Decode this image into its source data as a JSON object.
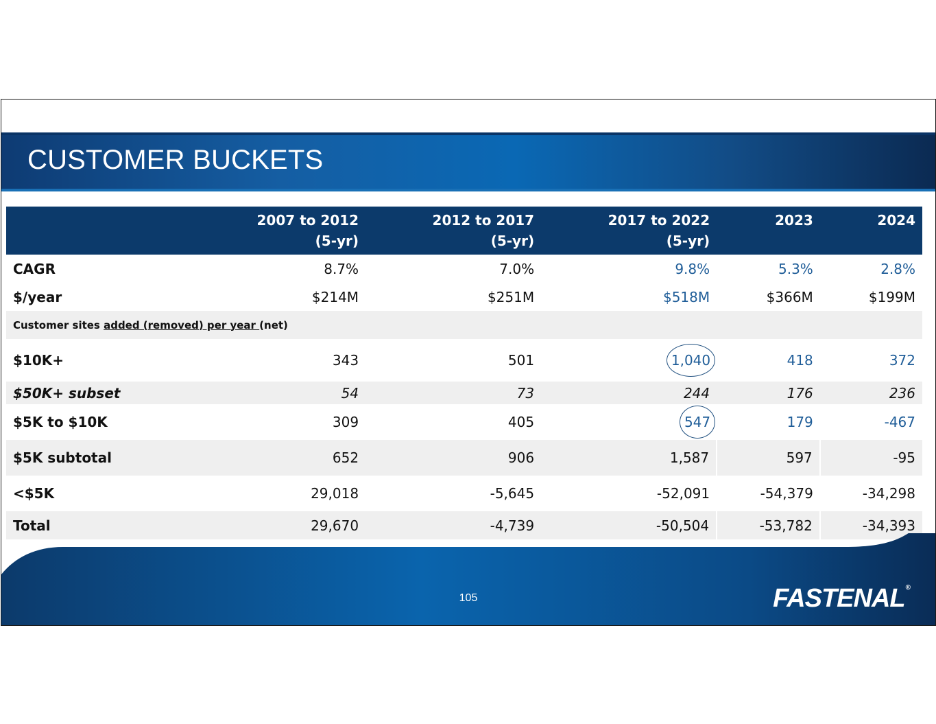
{
  "slide": {
    "title": "CUSTOMER BUCKETS",
    "page_number": "105",
    "brand": "FASTENAL",
    "brand_mark": "®"
  },
  "table": {
    "headers": [
      {
        "line1": "2007 to 2012",
        "line2": "(5-yr)"
      },
      {
        "line1": "2012 to 2017",
        "line2": "(5-yr)"
      },
      {
        "line1": "2017 to 2022",
        "line2": "(5-yr)"
      },
      {
        "line1": "2023",
        "line2": ""
      },
      {
        "line1": "2024",
        "line2": ""
      }
    ],
    "rows": {
      "cagr": {
        "label": "CAGR",
        "values": [
          "8.7%",
          "7.0%",
          "9.8%",
          "5.3%",
          "2.8%"
        ]
      },
      "dollars": {
        "label": "$/year",
        "values": [
          "$214M",
          "$251M",
          "$518M",
          "$366M",
          "$199M"
        ]
      },
      "section": {
        "prefix": "Customer sites ",
        "underlined": "added (removed) per year ",
        "suffix": "(net)"
      },
      "ten_k": {
        "label": "$10K+",
        "values": [
          "343",
          "501",
          "1,040",
          "418",
          "372"
        ]
      },
      "fifty_k": {
        "label": "$50K+ subset",
        "values": [
          "54",
          "73",
          "244",
          "176",
          "236"
        ]
      },
      "five_to_ten": {
        "label": "$5K to $10K",
        "values": [
          "309",
          "405",
          "547",
          "179",
          "-467"
        ]
      },
      "five_subtotal": {
        "label": "$5K subtotal",
        "values": [
          "652",
          "906",
          "1,587",
          "597",
          "-95"
        ]
      },
      "under_five": {
        "label": "<$5K",
        "values": [
          "29,018",
          "-5,645",
          "-52,091",
          "-54,379",
          "-34,298"
        ]
      },
      "total": {
        "label": "Total",
        "values": [
          "29,670",
          "-4,739",
          "-50,504",
          "-53,782",
          "-34,393"
        ]
      }
    }
  },
  "colors": {
    "header_bg": "#0c3a6b",
    "highlight_text": "#1f5d98",
    "stripe": "#efefef"
  }
}
